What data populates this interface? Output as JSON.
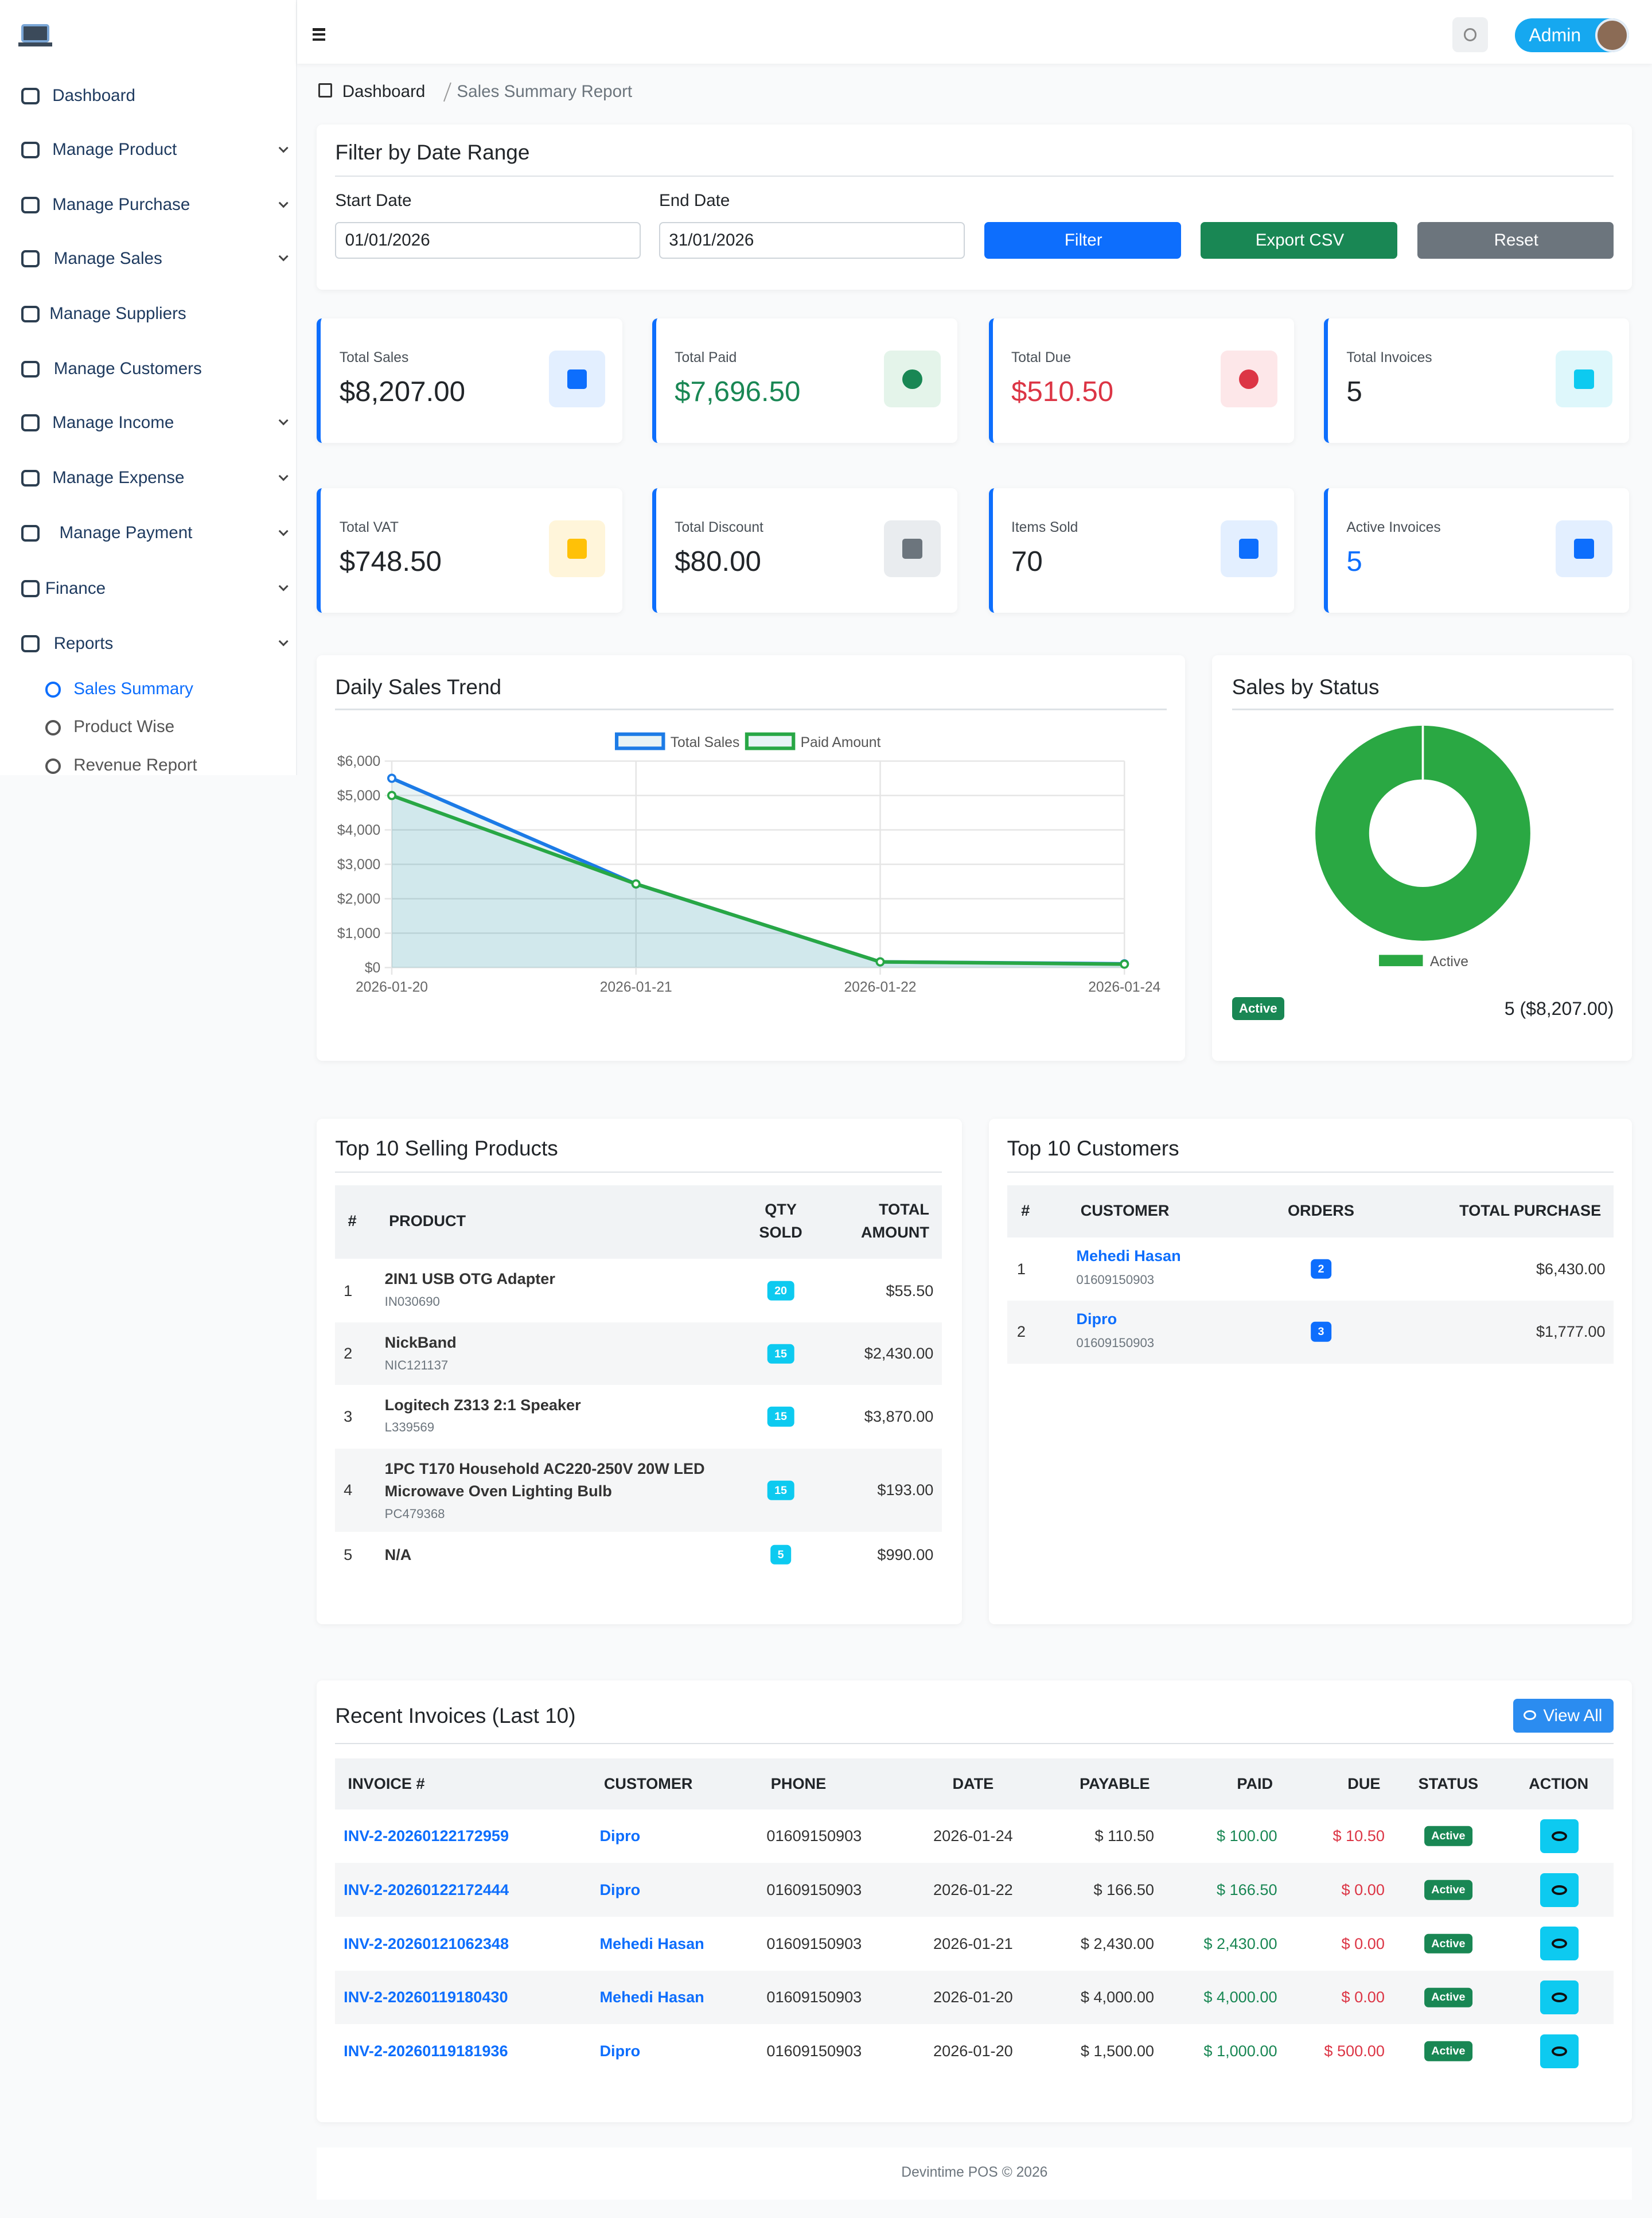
{
  "sidebar": {
    "menu": [
      "Dashboard",
      "Manage Product",
      "Manage Purchase",
      "Manage Sales",
      "Manage Suppliers",
      "Manage Customers",
      "Manage Income",
      "Manage Expense",
      "Manage Payment",
      "Finance",
      "Reports"
    ],
    "submenu": [
      "Sales Summary",
      "Product Wise",
      "Revenue Report"
    ]
  },
  "topbar": {
    "user": "Admin"
  },
  "breadcrumb": {
    "home": "Dashboard",
    "current": "Sales Summary Report"
  },
  "filter": {
    "title": "Filter by Date Range",
    "start_label": "Start Date",
    "start_value": "01/01/2026",
    "end_label": "End Date",
    "end_value": "31/01/2026",
    "buttons": [
      "Filter",
      "Export CSV",
      "Reset"
    ]
  },
  "stats": [
    {
      "label": "Total Sales",
      "value": "$8,207.00"
    },
    {
      "label": "Total Paid",
      "value": "$7,696.50"
    },
    {
      "label": "Total Due",
      "value": "$510.50"
    },
    {
      "label": "Total Invoices",
      "value": "5"
    },
    {
      "label": "Total VAT",
      "value": "$748.50"
    },
    {
      "label": "Total Discount",
      "value": "$80.00"
    },
    {
      "label": "Items Sold",
      "value": "70"
    },
    {
      "label": "Active Invoices",
      "value": "5"
    }
  ],
  "trend_chart": {
    "type": "line",
    "title": "Daily Sales Trend",
    "categories": [
      "2026-01-20",
      "2026-01-21",
      "2026-01-22",
      "2026-01-24"
    ],
    "series": [
      {
        "name": "Total Sales",
        "color": "#1c7be6",
        "values": [
          5500,
          2430,
          166.5,
          110.5
        ]
      },
      {
        "name": "Paid Amount",
        "color": "#28a745",
        "values": [
          5000,
          2430,
          166.5,
          100
        ]
      }
    ],
    "ylim": [
      0,
      6000
    ],
    "yticks": [
      {
        "value": 0,
        "label": "$0"
      },
      {
        "value": 1000,
        "label": "$1,000"
      },
      {
        "value": 2000,
        "label": "$2,000"
      },
      {
        "value": 3000,
        "label": "$3,000"
      },
      {
        "value": 4000,
        "label": "$4,000"
      },
      {
        "value": 5000,
        "label": "$5,000"
      },
      {
        "value": 6000,
        "label": "$6,000"
      }
    ],
    "grid": true
  },
  "status_chart": {
    "type": "pie",
    "title": "Sales by Status",
    "categories": [
      "Active"
    ],
    "values": [
      5
    ],
    "colors": [
      "#2aa843"
    ],
    "summary": [
      {
        "badge": "Active",
        "text": "5 ($8,207.00)"
      }
    ]
  },
  "top_products": {
    "title": "Top 10 Selling Products",
    "columns": [
      "#",
      "PRODUCT",
      "QTY SOLD",
      "TOTAL AMOUNT"
    ],
    "rows": [
      {
        "rank": "1",
        "name": "2IN1 USB OTG Adapter",
        "code": "IN030690",
        "qty": "20",
        "total": "$55.50"
      },
      {
        "rank": "2",
        "name": "NickBand",
        "code": "NIC121137",
        "qty": "15",
        "total": "$2,430.00"
      },
      {
        "rank": "3",
        "name": "Logitech Z313 2:1 Speaker",
        "code": "L339569",
        "qty": "15",
        "total": "$3,870.00"
      },
      {
        "rank": "4",
        "name": "1PC T170 Household AC220-250V 20W LED Microwave Oven Lighting Bulb",
        "code": "PC479368",
        "qty": "15",
        "total": "$193.00"
      },
      {
        "rank": "5",
        "name": "N/A",
        "qty": "5",
        "total": "$990.00"
      }
    ]
  },
  "top_customers": {
    "title": "Top 10 Customers",
    "columns": [
      "#",
      "CUSTOMER",
      "ORDERS",
      "TOTAL PURCHASE"
    ],
    "rows": [
      {
        "rank": "1",
        "name": "Mehedi Hasan",
        "phone": "01609150903",
        "orders": "2",
        "total": "$6,430.00"
      },
      {
        "rank": "2",
        "name": "Dipro",
        "phone": "01609150903",
        "orders": "3",
        "total": "$1,777.00"
      }
    ]
  },
  "recent_invoices": {
    "title": "Recent Invoices (Last 10)",
    "view_all": "View All",
    "columns": [
      "INVOICE #",
      "CUSTOMER",
      "PHONE",
      "DATE",
      "PAYABLE",
      "PAID",
      "DUE",
      "STATUS",
      "ACTION"
    ],
    "rows": [
      {
        "invoice": "INV-2-20260122172959",
        "customer": "Dipro",
        "phone": "01609150903",
        "date": "2026-01-24",
        "payable": "$ 110.50",
        "paid": "$ 100.00",
        "due": "$ 10.50",
        "status": "Active"
      },
      {
        "invoice": "INV-2-20260122172444",
        "customer": "Dipro",
        "phone": "01609150903",
        "date": "2026-01-22",
        "payable": "$ 166.50",
        "paid": "$ 166.50",
        "due": "$ 0.00",
        "status": "Active"
      },
      {
        "invoice": "INV-2-20260121062348",
        "customer": "Mehedi Hasan",
        "phone": "01609150903",
        "date": "2026-01-21",
        "payable": "$ 2,430.00",
        "paid": "$ 2,430.00",
        "due": "$ 0.00",
        "status": "Active"
      },
      {
        "invoice": "INV-2-20260119180430",
        "customer": "Mehedi Hasan",
        "phone": "01609150903",
        "date": "2026-01-20",
        "payable": "$ 4,000.00",
        "paid": "$ 4,000.00",
        "due": "$ 0.00",
        "status": "Active"
      },
      {
        "invoice": "INV-2-20260119181936",
        "customer": "Dipro",
        "phone": "01609150903",
        "date": "2026-01-20",
        "payable": "$ 1,500.00",
        "paid": "$ 1,000.00",
        "due": "$ 500.00",
        "status": "Active"
      }
    ]
  },
  "footer": "Devintime POS © 2026"
}
